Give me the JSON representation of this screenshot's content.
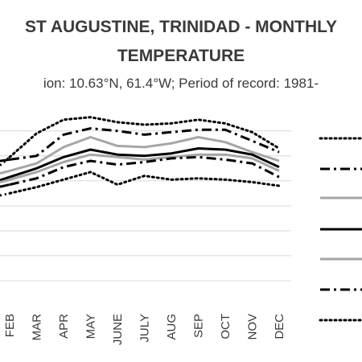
{
  "chart": {
    "title_line1": "ST AUGUSTINE, TRINIDAD - MONTHLY",
    "title_line2": "TEMPERATURE",
    "subtitle": "ion: 10.63°N, 61.4°W; Period of record: 1981-"
  },
  "chart_data": {
    "type": "line",
    "categories": [
      "FEB",
      "MAR",
      "APR",
      "MAY",
      "JUNE",
      "JULY",
      "AUG",
      "SEP",
      "OCT",
      "NOV",
      "DEC"
    ],
    "ylim": [
      0,
      7.7
    ],
    "grid": true,
    "legend_position": "right",
    "series": [
      {
        "values": [
          5.95,
          6.9,
          7.45,
          7.55,
          7.35,
          7.25,
          7.3,
          7.45,
          7.3,
          6.95,
          6.3
        ],
        "color": "#000000",
        "style": "dotted"
      },
      {
        "values": [
          5.85,
          6.0,
          6.85,
          7.1,
          7.0,
          6.85,
          6.95,
          7.05,
          7.05,
          6.6,
          6.15
        ],
        "color": "#000000",
        "style": "dashdot"
      },
      {
        "values": [
          5.4,
          5.7,
          6.35,
          6.75,
          6.4,
          6.35,
          6.5,
          6.75,
          6.55,
          6.15,
          5.8
        ],
        "color": "#a6a6a6",
        "style": "solid"
      },
      {
        "values": [
          5.15,
          5.5,
          5.95,
          6.25,
          6.05,
          6.0,
          6.1,
          6.3,
          6.25,
          6.05,
          5.55
        ],
        "color": "#000000",
        "style": "solid"
      },
      {
        "values": [
          5.05,
          5.35,
          5.75,
          6.05,
          5.95,
          5.85,
          5.95,
          6.05,
          6.05,
          5.9,
          5.4
        ],
        "color": "#a6a6a6",
        "style": "solid"
      },
      {
        "values": [
          4.85,
          5.1,
          5.55,
          5.8,
          5.65,
          5.75,
          5.9,
          5.95,
          5.85,
          5.7,
          5.15
        ],
        "color": "#000000",
        "style": "dashdot"
      },
      {
        "values": [
          4.5,
          4.75,
          5.05,
          5.35,
          4.85,
          5.2,
          5.05,
          5.1,
          5.05,
          4.95,
          4.8
        ],
        "color": "#000000",
        "style": "dotted"
      }
    ]
  }
}
